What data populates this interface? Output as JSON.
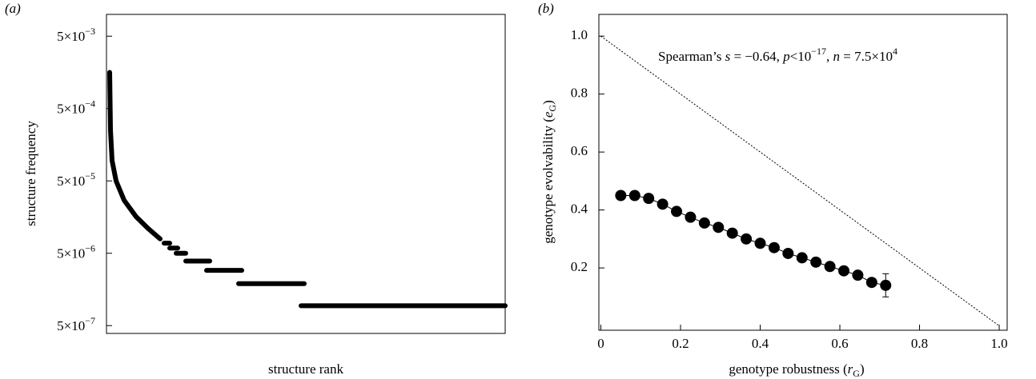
{
  "chart_data": [
    {
      "type": "line",
      "panel_label": "(a)",
      "xlabel": "structure rank",
      "ylabel": "structure frequency",
      "log_y": true,
      "color": "#000000",
      "x": [
        4,
        5,
        7,
        12,
        22,
        37,
        52,
        67,
        null,
        72,
        79,
        null,
        79,
        89,
        null,
        87,
        99,
        null,
        99,
        129,
        null,
        125,
        169,
        null,
        165,
        247,
        null,
        243,
        498
      ],
      "values": [
        0.00158,
        0.00025,
        9.5e-05,
        5e-05,
        2.7e-05,
        1.6e-05,
        1.1e-05,
        7.9e-06,
        null,
        6.9e-06,
        6.9e-06,
        null,
        5.9e-06,
        5.9e-06,
        null,
        5e-06,
        5e-06,
        null,
        3.9e-06,
        3.9e-06,
        null,
        2.9e-06,
        2.9e-06,
        null,
        1.9e-06,
        1.9e-06,
        null,
        9.4e-07,
        9.4e-07
      ],
      "xlim": [
        0,
        498
      ],
      "ylim": [
        3.9e-07,
        0.01
      ],
      "yticks": [
        {
          "value": 5e-07,
          "label": "5×10",
          "exponent": "−7"
        },
        {
          "value": 5e-06,
          "label": "5×10",
          "exponent": "−6"
        },
        {
          "value": 5e-05,
          "label": "5×10",
          "exponent": "−5"
        },
        {
          "value": 0.0005,
          "label": "5×10",
          "exponent": "−4"
        },
        {
          "value": 0.005,
          "label": "5×10",
          "exponent": "−3"
        }
      ]
    },
    {
      "type": "scatter",
      "panel_label": "(b)",
      "xlabel": [
        "genotype robustness (",
        "r",
        "G",
        ")"
      ],
      "xlabel_style": [
        "normal",
        "italic",
        "sub",
        "normal"
      ],
      "ylabel": [
        "genotype evolvability (",
        "e",
        "G",
        ")"
      ],
      "ylabel_style": [
        "normal",
        "italic",
        "sub",
        "normal"
      ],
      "annotation": [
        "Spearman’s ",
        "s",
        " = −0.64, ",
        "p",
        "<10",
        "−17",
        ", ",
        "n",
        " = 7.5×10",
        "4"
      ],
      "annotation_style": [
        "normal",
        "italic",
        "normal",
        "italic",
        "normal",
        "sup",
        "normal",
        "italic",
        "normal",
        "sup"
      ],
      "color": "#000000",
      "x": [
        0.05,
        0.085,
        0.12,
        0.155,
        0.19,
        0.225,
        0.26,
        0.295,
        0.33,
        0.365,
        0.4,
        0.435,
        0.47,
        0.505,
        0.54,
        0.575,
        0.61,
        0.645,
        0.68,
        0.715
      ],
      "values": [
        0.45,
        0.45,
        0.44,
        0.42,
        0.395,
        0.375,
        0.355,
        0.34,
        0.32,
        0.3,
        0.285,
        0.27,
        0.25,
        0.235,
        0.22,
        0.205,
        0.19,
        0.175,
        0.15,
        0.14
      ],
      "errors": [
        0.005,
        0.005,
        0.005,
        0.005,
        0.005,
        0.005,
        0.005,
        0.005,
        0.005,
        0.005,
        0.005,
        0.005,
        0.005,
        0.005,
        0.005,
        0.005,
        0.005,
        0.005,
        0.01,
        0.04
      ],
      "reference_line": {
        "x": [
          0,
          1
        ],
        "values": [
          1,
          0
        ]
      },
      "xlim": [
        -0.005,
        1.02
      ],
      "ylim": [
        -0.015,
        1.075
      ],
      "xticks": [
        0,
        0.2,
        0.4,
        0.6,
        0.8,
        {
          "value": 1,
          "label": "1.0"
        }
      ],
      "yticks": [
        0.2,
        0.4,
        0.6,
        0.8,
        {
          "value": 1,
          "label": "1.0"
        }
      ]
    }
  ]
}
